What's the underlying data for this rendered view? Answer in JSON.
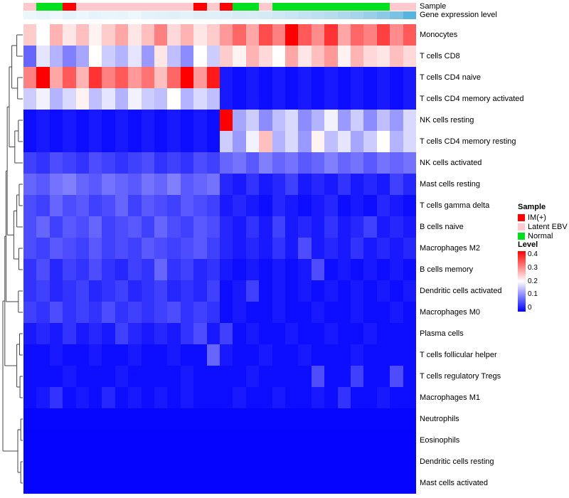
{
  "annotations": {
    "sample_label": "Sample",
    "level_label": "Gene expression level"
  },
  "legend": {
    "sample": {
      "title": "Sample",
      "items": [
        {
          "label": "IM(+)",
          "color": "#FF0000"
        },
        {
          "label": "Latent EBV",
          "color": "#FFC9CE"
        },
        {
          "label": "Normal",
          "color": "#00E01E"
        }
      ]
    },
    "level": {
      "title": "Level",
      "ticks": [
        "0.4",
        "0.3",
        "0.2",
        "0.1",
        "0"
      ],
      "top_color": "#FF0000",
      "mid_color": "#FFFFFF",
      "bottom_color": "#0000FF"
    }
  },
  "chart_data": {
    "type": "heatmap",
    "title": "",
    "columns": 30,
    "value_range": [
      0,
      0.4
    ],
    "colormap": {
      "low": "#0000FF",
      "mid": "#FFFFFF",
      "high": "#FF0000",
      "mid_at": 0.2
    },
    "rows": [
      "Monocytes",
      "T cells CD8",
      "T cells CD4 naive",
      "T cells CD4 memory activated",
      "NK cells resting",
      "T cells CD4 memory resting",
      "NK cells activated",
      "Mast cells resting",
      "T cells gamma delta",
      "B cells naive",
      "Macrophages M2",
      "B cells memory",
      "Dendritic cells activated",
      "Macrophages M0",
      "Plasma cells",
      "T cells follicular helper",
      "T cells regulatory  Tregs",
      "Macrophages M1",
      "Neutrophils",
      "Eosinophils",
      "Dendritic cells resting",
      "Mast cells activated"
    ],
    "values": [
      [
        0.24,
        0.2,
        0.26,
        0.22,
        0.25,
        0.21,
        0.24,
        0.27,
        0.22,
        0.25,
        0.3,
        0.23,
        0.26,
        0.22,
        0.24,
        0.28,
        0.32,
        0.27,
        0.34,
        0.3,
        0.4,
        0.33,
        0.29,
        0.36,
        0.27,
        0.32,
        0.3,
        0.35,
        0.29,
        0.33
      ],
      [
        0.08,
        0.18,
        0.14,
        0.1,
        0.13,
        0.2,
        0.16,
        0.14,
        0.18,
        0.12,
        0.22,
        0.15,
        0.11,
        0.2,
        0.16,
        0.24,
        0.21,
        0.26,
        0.23,
        0.2,
        0.27,
        0.22,
        0.25,
        0.28,
        0.21,
        0.26,
        0.23,
        0.22,
        0.25,
        0.23
      ],
      [
        0.3,
        0.4,
        0.27,
        0.33,
        0.26,
        0.36,
        0.3,
        0.33,
        0.28,
        0.31,
        0.25,
        0.32,
        0.4,
        0.28,
        0.38,
        0.02,
        0.01,
        0.02,
        0.01,
        0.02,
        0.01,
        0.02,
        0.01,
        0.02,
        0.01,
        0.02,
        0.01,
        0.02,
        0.01,
        0.02
      ],
      [
        0.16,
        0.19,
        0.14,
        0.17,
        0.21,
        0.15,
        0.18,
        0.14,
        0.19,
        0.16,
        0.15,
        0.2,
        0.14,
        0.17,
        0.15,
        0.02,
        0.01,
        0.02,
        0.01,
        0.02,
        0.01,
        0.02,
        0.01,
        0.02,
        0.01,
        0.02,
        0.01,
        0.02,
        0.01,
        0.02
      ],
      [
        0.01,
        0.02,
        0.01,
        0.02,
        0.01,
        0.02,
        0.01,
        0.02,
        0.01,
        0.02,
        0.01,
        0.02,
        0.01,
        0.02,
        0.01,
        0.4,
        0.13,
        0.16,
        0.11,
        0.15,
        0.17,
        0.11,
        0.14,
        0.19,
        0.12,
        0.16,
        0.11,
        0.15,
        0.12,
        0.17
      ],
      [
        0.01,
        0.02,
        0.01,
        0.02,
        0.01,
        0.02,
        0.01,
        0.02,
        0.01,
        0.02,
        0.01,
        0.02,
        0.01,
        0.02,
        0.01,
        0.16,
        0.12,
        0.19,
        0.25,
        0.14,
        0.17,
        0.12,
        0.21,
        0.15,
        0.18,
        0.13,
        0.16,
        0.2,
        0.14,
        0.17
      ],
      [
        0.05,
        0.04,
        0.06,
        0.05,
        0.04,
        0.06,
        0.05,
        0.04,
        0.05,
        0.06,
        0.04,
        0.05,
        0.04,
        0.06,
        0.05,
        0.08,
        0.09,
        0.07,
        0.1,
        0.08,
        0.09,
        0.07,
        0.08,
        0.1,
        0.08,
        0.09,
        0.07,
        0.09,
        0.08,
        0.09
      ],
      [
        0.08,
        0.07,
        0.09,
        0.1,
        0.08,
        0.07,
        0.09,
        0.08,
        0.07,
        0.09,
        0.08,
        0.1,
        0.07,
        0.08,
        0.09,
        0.03,
        0.02,
        0.04,
        0.02,
        0.03,
        0.05,
        0.02,
        0.03,
        0.02,
        0.04,
        0.02,
        0.03,
        0.02,
        0.05,
        0.03
      ],
      [
        0.06,
        0.05,
        0.08,
        0.06,
        0.07,
        0.05,
        0.06,
        0.08,
        0.05,
        0.07,
        0.06,
        0.05,
        0.07,
        0.06,
        0.05,
        0.02,
        0.03,
        0.02,
        0.01,
        0.03,
        0.02,
        0.01,
        0.02,
        0.03,
        0.01,
        0.02,
        0.01,
        0.03,
        0.02,
        0.01
      ],
      [
        0.06,
        0.08,
        0.05,
        0.07,
        0.06,
        0.08,
        0.05,
        0.06,
        0.07,
        0.05,
        0.08,
        0.06,
        0.05,
        0.07,
        0.06,
        0.03,
        0.02,
        0.04,
        0.02,
        0.05,
        0.02,
        0.03,
        0.02,
        0.04,
        0.02,
        0.03,
        0.05,
        0.02,
        0.03,
        0.02
      ],
      [
        0.06,
        0.05,
        0.07,
        0.06,
        0.05,
        0.07,
        0.05,
        0.06,
        0.05,
        0.07,
        0.06,
        0.05,
        0.06,
        0.07,
        0.05,
        0.03,
        0.02,
        0.03,
        0.02,
        0.04,
        0.02,
        0.06,
        0.02,
        0.03,
        0.02,
        0.04,
        0.02,
        0.03,
        0.02,
        0.03
      ],
      [
        0.04,
        0.06,
        0.03,
        0.05,
        0.04,
        0.06,
        0.04,
        0.03,
        0.05,
        0.04,
        0.08,
        0.04,
        0.05,
        0.03,
        0.04,
        0.02,
        0.01,
        0.02,
        0.01,
        0.02,
        0.01,
        0.02,
        0.06,
        0.01,
        0.02,
        0.01,
        0.02,
        0.01,
        0.02,
        0.01
      ],
      [
        0.04,
        0.05,
        0.03,
        0.04,
        0.05,
        0.03,
        0.04,
        0.05,
        0.03,
        0.04,
        0.05,
        0.03,
        0.04,
        0.03,
        0.05,
        0.01,
        0.02,
        0.05,
        0.01,
        0.02,
        0.01,
        0.02,
        0.01,
        0.02,
        0.01,
        0.02,
        0.01,
        0.02,
        0.01,
        0.02
      ],
      [
        0.05,
        0.04,
        0.06,
        0.04,
        0.05,
        0.04,
        0.06,
        0.04,
        0.05,
        0.04,
        0.05,
        0.06,
        0.04,
        0.05,
        0.04,
        0.01,
        0.02,
        0.01,
        0.01,
        0.02,
        0.01,
        0.01,
        0.02,
        0.01,
        0.01,
        0.02,
        0.01,
        0.01,
        0.02,
        0.01
      ],
      [
        0.02,
        0.03,
        0.02,
        0.04,
        0.02,
        0.03,
        0.02,
        0.05,
        0.03,
        0.02,
        0.03,
        0.02,
        0.04,
        0.06,
        0.02,
        0.05,
        0.01,
        0.02,
        0.01,
        0.01,
        0.02,
        0.01,
        0.01,
        0.02,
        0.01,
        0.01,
        0.02,
        0.01,
        0.01,
        0.01
      ],
      [
        0.01,
        0.01,
        0.02,
        0.01,
        0.01,
        0.02,
        0.01,
        0.01,
        0.02,
        0.01,
        0.01,
        0.02,
        0.01,
        0.01,
        0.08,
        0.02,
        0.01,
        0.01,
        0.02,
        0.01,
        0.01,
        0.02,
        0.01,
        0.01,
        0.01,
        0.02,
        0.01,
        0.01,
        0.01,
        0.01
      ],
      [
        0.01,
        0.01,
        0.01,
        0.02,
        0.01,
        0.01,
        0.01,
        0.02,
        0.01,
        0.01,
        0.01,
        0.01,
        0.02,
        0.01,
        0.01,
        0.01,
        0.01,
        0.02,
        0.01,
        0.01,
        0.01,
        0.01,
        0.06,
        0.01,
        0.01,
        0.05,
        0.01,
        0.01,
        0.06,
        0.01
      ],
      [
        0.01,
        0.02,
        0.04,
        0.01,
        0.02,
        0.01,
        0.03,
        0.01,
        0.02,
        0.01,
        0.02,
        0.01,
        0.02,
        0.01,
        0.01,
        0.01,
        0.02,
        0.01,
        0.01,
        0.02,
        0.01,
        0.01,
        0.02,
        0.01,
        0.04,
        0.01,
        0.01,
        0.02,
        0.01,
        0.01
      ],
      [
        0.005,
        0.005,
        0.005,
        0.005,
        0.005,
        0.005,
        0.005,
        0.005,
        0.005,
        0.005,
        0.005,
        0.005,
        0.005,
        0.005,
        0.005,
        0.005,
        0.005,
        0.005,
        0.005,
        0.005,
        0.005,
        0.005,
        0.005,
        0.005,
        0.005,
        0.005,
        0.005,
        0.005,
        0.005,
        0.005
      ],
      [
        0.003,
        0.003,
        0.003,
        0.003,
        0.003,
        0.003,
        0.003,
        0.003,
        0.003,
        0.003,
        0.003,
        0.003,
        0.003,
        0.003,
        0.003,
        0.003,
        0.003,
        0.003,
        0.003,
        0.003,
        0.003,
        0.003,
        0.003,
        0.003,
        0.003,
        0.003,
        0.003,
        0.003,
        0.003,
        0.003
      ],
      [
        0.003,
        0.003,
        0.003,
        0.003,
        0.003,
        0.003,
        0.003,
        0.003,
        0.003,
        0.003,
        0.003,
        0.003,
        0.003,
        0.003,
        0.003,
        0.003,
        0.003,
        0.003,
        0.003,
        0.003,
        0.003,
        0.003,
        0.003,
        0.003,
        0.003,
        0.003,
        0.003,
        0.003,
        0.003,
        0.003
      ],
      [
        0.003,
        0.003,
        0.003,
        0.003,
        0.003,
        0.003,
        0.003,
        0.003,
        0.003,
        0.003,
        0.003,
        0.003,
        0.003,
        0.003,
        0.003,
        0.003,
        0.003,
        0.003,
        0.003,
        0.003,
        0.003,
        0.003,
        0.003,
        0.003,
        0.003,
        0.003,
        0.003,
        0.003,
        0.003,
        0.003
      ]
    ],
    "column_annotations": {
      "sample_colors": [
        "#FFC9CE",
        "#00E01E",
        "#00E01E",
        "#FF0000",
        "#FFC9CE",
        "#FFC9CE",
        "#FFC9CE",
        "#FFC9CE",
        "#FFC9CE",
        "#FFC9CE",
        "#FFC9CE",
        "#FFC9CE",
        "#FFC9CE",
        "#FF0000",
        "#FFC9CE",
        "#FF0000",
        "#00E01E",
        "#00E01E",
        "#FFC9CE",
        "#00E01E",
        "#00E01E",
        "#00E01E",
        "#00E01E",
        "#00E01E",
        "#00E01E",
        "#00E01E",
        "#00E01E",
        "#00E01E",
        "#FFC9CE",
        "#FFC9CE"
      ],
      "gene_expression_colors": [
        "#EDF6FB",
        "#E9F4FA",
        "#EFF7FC",
        "#E7F3FA",
        "#ECF6FB",
        "#E6F3FA",
        "#EAF5FB",
        "#E8F4FA",
        "#EEF7FC",
        "#E5F2F9",
        "#E3F1F9",
        "#E0F0F8",
        "#E4F2F9",
        "#DEEFF8",
        "#E1F0F8",
        "#DCEEF7",
        "#D8ECF6",
        "#DAEDF7",
        "#D4EAF5",
        "#CFE8F4",
        "#CAE5F3",
        "#C4E2F1",
        "#BEDFF0",
        "#B7DCEE",
        "#AFD8EC",
        "#A6D4EA",
        "#9BCFE8",
        "#8DC9E5",
        "#7BC1E2",
        "#58B4DC"
      ]
    },
    "row_dendrogram_merges": [
      {
        "a": 0,
        "b": 1,
        "h": 0.3
      },
      {
        "a": 2,
        "b": 3,
        "h": 0.26
      },
      {
        "a": "m0",
        "b": "m1",
        "h": 0.55
      },
      {
        "a": 4,
        "b": 5,
        "h": 0.22
      },
      {
        "a": "m3",
        "b": 6,
        "h": 0.4
      },
      {
        "a": "m2",
        "b": "m4",
        "h": 0.68
      },
      {
        "a": 7,
        "b": 8,
        "h": 0.18
      },
      {
        "a": "m6",
        "b": 9,
        "h": 0.3
      },
      {
        "a": 10,
        "b": 11,
        "h": 0.2
      },
      {
        "a": "m7",
        "b": "m8",
        "h": 0.45
      },
      {
        "a": "m5",
        "b": "m9",
        "h": 0.78
      },
      {
        "a": 12,
        "b": 13,
        "h": 0.22
      },
      {
        "a": "m10",
        "b": "m11",
        "h": 0.84
      },
      {
        "a": 14,
        "b": 15,
        "h": 0.16
      },
      {
        "a": 16,
        "b": 17,
        "h": 0.14
      },
      {
        "a": "m13",
        "b": "m14",
        "h": 0.3
      },
      {
        "a": "m12",
        "b": "m15",
        "h": 0.9
      },
      {
        "a": 18,
        "b": 19,
        "h": 0.1
      },
      {
        "a": 20,
        "b": 21,
        "h": 0.1
      },
      {
        "a": "m17",
        "b": "m18",
        "h": 0.25
      },
      {
        "a": "m16",
        "b": "m19",
        "h": 1.0
      }
    ]
  }
}
